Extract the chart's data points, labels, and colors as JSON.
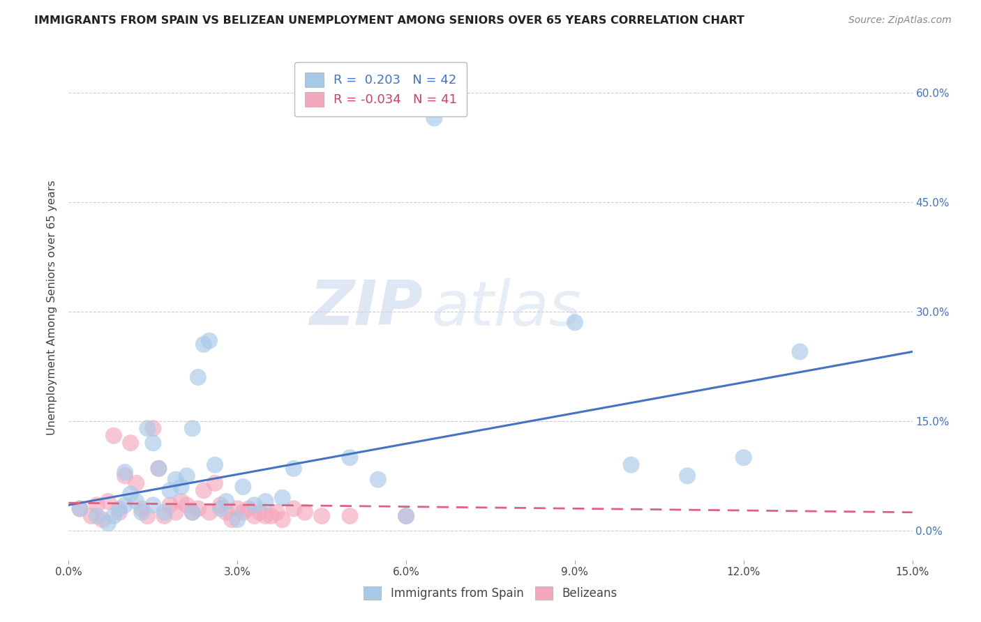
{
  "title": "IMMIGRANTS FROM SPAIN VS BELIZEAN UNEMPLOYMENT AMONG SENIORS OVER 65 YEARS CORRELATION CHART",
  "source": "Source: ZipAtlas.com",
  "ylabel": "Unemployment Among Seniors over 65 years",
  "xlim": [
    0.0,
    0.15
  ],
  "ylim": [
    -0.04,
    0.65
  ],
  "yticks": [
    0.0,
    0.15,
    0.3,
    0.45,
    0.6
  ],
  "ytick_labels": [
    "0.0%",
    "15.0%",
    "30.0%",
    "45.0%",
    "60.0%"
  ],
  "xticks": [
    0.0,
    0.03,
    0.06,
    0.09,
    0.12,
    0.15
  ],
  "xtick_labels": [
    "0.0%",
    "3.0%",
    "6.0%",
    "9.0%",
    "12.0%",
    "15.0%"
  ],
  "blue_label": "Immigrants from Spain",
  "pink_label": "Belizeans",
  "blue_R": 0.203,
  "blue_N": 42,
  "pink_R": -0.034,
  "pink_N": 41,
  "blue_color": "#a8c8e8",
  "pink_color": "#f4a8bc",
  "blue_line_color": "#4472c4",
  "pink_line_color": "#e06080",
  "watermark_zip": "ZIP",
  "watermark_atlas": "atlas",
  "blue_scatter_x": [
    0.002,
    0.005,
    0.007,
    0.008,
    0.009,
    0.01,
    0.01,
    0.011,
    0.012,
    0.013,
    0.014,
    0.015,
    0.015,
    0.016,
    0.017,
    0.018,
    0.019,
    0.02,
    0.021,
    0.022,
    0.022,
    0.023,
    0.024,
    0.025,
    0.026,
    0.027,
    0.028,
    0.03,
    0.031,
    0.033,
    0.035,
    0.038,
    0.04,
    0.05,
    0.055,
    0.06,
    0.065,
    0.09,
    0.1,
    0.11,
    0.12,
    0.13
  ],
  "blue_scatter_y": [
    0.03,
    0.02,
    0.01,
    0.02,
    0.03,
    0.035,
    0.08,
    0.05,
    0.04,
    0.025,
    0.14,
    0.035,
    0.12,
    0.085,
    0.025,
    0.055,
    0.07,
    0.06,
    0.075,
    0.14,
    0.025,
    0.21,
    0.255,
    0.26,
    0.09,
    0.03,
    0.04,
    0.015,
    0.06,
    0.035,
    0.04,
    0.045,
    0.085,
    0.1,
    0.07,
    0.02,
    0.565,
    0.285,
    0.09,
    0.075,
    0.1,
    0.245
  ],
  "pink_scatter_x": [
    0.002,
    0.004,
    0.005,
    0.006,
    0.007,
    0.008,
    0.009,
    0.01,
    0.011,
    0.012,
    0.013,
    0.014,
    0.015,
    0.016,
    0.017,
    0.018,
    0.019,
    0.02,
    0.021,
    0.022,
    0.023,
    0.024,
    0.025,
    0.026,
    0.027,
    0.028,
    0.029,
    0.03,
    0.031,
    0.032,
    0.033,
    0.034,
    0.035,
    0.036,
    0.037,
    0.038,
    0.04,
    0.042,
    0.045,
    0.05,
    0.06
  ],
  "pink_scatter_y": [
    0.03,
    0.02,
    0.035,
    0.015,
    0.04,
    0.13,
    0.025,
    0.075,
    0.12,
    0.065,
    0.03,
    0.02,
    0.14,
    0.085,
    0.02,
    0.035,
    0.025,
    0.04,
    0.035,
    0.025,
    0.03,
    0.055,
    0.025,
    0.065,
    0.035,
    0.025,
    0.015,
    0.03,
    0.025,
    0.03,
    0.02,
    0.025,
    0.02,
    0.02,
    0.025,
    0.015,
    0.03,
    0.025,
    0.02,
    0.02,
    0.02
  ],
  "blue_trend_x": [
    0.0,
    0.15
  ],
  "blue_trend_y": [
    0.035,
    0.245
  ],
  "pink_trend_x": [
    0.0,
    0.15
  ],
  "pink_trend_y": [
    0.038,
    0.025
  ]
}
